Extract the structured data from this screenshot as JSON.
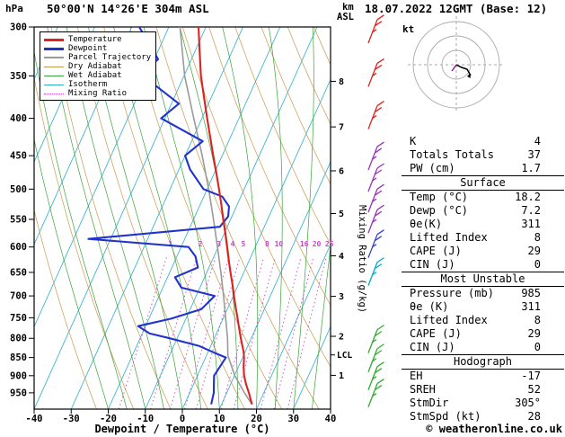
{
  "header": {
    "pressure_unit": "hPa",
    "station": "50°00'N 14°26'E 304m ASL",
    "datetime": "18.07.2022 12GMT (Base: 12)",
    "km_label": "km",
    "asl_label": "ASL",
    "kt_label": "kt"
  },
  "axes": {
    "xlabel": "Dewpoint / Temperature (°C)",
    "x_ticks": [
      -40,
      -30,
      -20,
      -10,
      0,
      10,
      20,
      30,
      40
    ],
    "pressure_ticks": [
      300,
      350,
      400,
      450,
      500,
      550,
      600,
      650,
      700,
      750,
      800,
      850,
      900,
      950
    ],
    "km_ticks": [
      8,
      7,
      6,
      5,
      4,
      3,
      2,
      1
    ],
    "mixing_ratio_label": "Mixing Ratio (g/kg)",
    "mixing_ratio_values": [
      1,
      2,
      3,
      4,
      5,
      8,
      10,
      16,
      20,
      25
    ],
    "lcl_label": "LCL"
  },
  "legend": [
    {
      "label": "Temperature",
      "color": "#dd2222",
      "width": 3,
      "dash": false
    },
    {
      "label": "Dewpoint",
      "color": "#2233cc",
      "width": 3,
      "dash": false
    },
    {
      "label": "Parcel Trajectory",
      "color": "#9a9a9a",
      "width": 2,
      "dash": false
    },
    {
      "label": "Dry Adiabat",
      "color": "#c79a4e",
      "width": 1,
      "dash": false
    },
    {
      "label": "Wet Adiabat",
      "color": "#3aa33a",
      "width": 1,
      "dash": false
    },
    {
      "label": "Isotherm",
      "color": "#29aecb",
      "width": 1,
      "dash": false
    },
    {
      "label": "Mixing Ratio",
      "color": "#cc44cc",
      "width": 1,
      "dash": true
    }
  ],
  "chart_data": {
    "type": "line",
    "subtype": "skew-t-log-p-sounding",
    "x_axis": {
      "label": "Dewpoint / Temperature (°C)",
      "range": [
        -40,
        40
      ],
      "ticks": [
        -40,
        -30,
        -20,
        -10,
        0,
        10,
        20,
        30,
        40
      ]
    },
    "y_axis": {
      "label": "hPa",
      "scale": "log",
      "range": [
        300,
        1000
      ],
      "ticks": [
        300,
        350,
        400,
        450,
        500,
        550,
        600,
        650,
        700,
        750,
        800,
        850,
        900,
        950
      ]
    },
    "secondary_y_axis": {
      "label": "km ASL",
      "ticks": [
        8,
        7,
        6,
        5,
        4,
        3,
        2,
        1
      ]
    },
    "mixing_ratio_lines_g_per_kg": [
      1,
      2,
      3,
      4,
      5,
      8,
      10,
      16,
      20,
      25
    ],
    "lcl_pressure_hpa": 843,
    "series": [
      {
        "name": "Temperature",
        "color": "#dd2222",
        "points": [
          [
            985,
            18.2
          ],
          [
            950,
            16.0
          ],
          [
            925,
            14.2
          ],
          [
            900,
            12.6
          ],
          [
            875,
            11.4
          ],
          [
            850,
            10.4
          ],
          [
            835,
            9.6
          ],
          [
            800,
            7.2
          ],
          [
            775,
            5.5
          ],
          [
            750,
            3.8
          ],
          [
            725,
            2.0
          ],
          [
            700,
            0.2
          ],
          [
            675,
            -1.6
          ],
          [
            650,
            -3.6
          ],
          [
            625,
            -5.6
          ],
          [
            600,
            -7.6
          ],
          [
            575,
            -9.7
          ],
          [
            550,
            -12.0
          ],
          [
            525,
            -14.3
          ],
          [
            500,
            -16.8
          ],
          [
            475,
            -19.5
          ],
          [
            450,
            -22.4
          ],
          [
            425,
            -25.4
          ],
          [
            400,
            -28.6
          ],
          [
            375,
            -31.9
          ],
          [
            350,
            -35.4
          ],
          [
            325,
            -38.6
          ],
          [
            300,
            -42.0
          ]
        ]
      },
      {
        "name": "Dewpoint",
        "color": "#2233cc",
        "points": [
          [
            985,
            7.2
          ],
          [
            950,
            6.5
          ],
          [
            925,
            5.5
          ],
          [
            900,
            4.5
          ],
          [
            875,
            5.0
          ],
          [
            850,
            5.5
          ],
          [
            838,
            2.0
          ],
          [
            820,
            -3.0
          ],
          [
            800,
            -12.0
          ],
          [
            788,
            -18.0
          ],
          [
            770,
            -22.0
          ],
          [
            752,
            -14.0
          ],
          [
            730,
            -7.0
          ],
          [
            700,
            -5.0
          ],
          [
            682,
            -15.0
          ],
          [
            660,
            -18.0
          ],
          [
            640,
            -13.0
          ],
          [
            618,
            -15.0
          ],
          [
            600,
            -18.0
          ],
          [
            585,
            -46.0
          ],
          [
            563,
            -12.0
          ],
          [
            545,
            -11.0
          ],
          [
            528,
            -12.0
          ],
          [
            512,
            -15.0
          ],
          [
            500,
            -21.0
          ],
          [
            470,
            -27.0
          ],
          [
            450,
            -30.0
          ],
          [
            430,
            -27.0
          ],
          [
            400,
            -41.0
          ],
          [
            382,
            -38.0
          ],
          [
            362,
            -46.0
          ],
          [
            350,
            -52.0
          ],
          [
            332,
            -49.0
          ],
          [
            300,
            -58.0
          ]
        ]
      },
      {
        "name": "Parcel Trajectory",
        "color": "#9a9a9a",
        "points": [
          [
            985,
            18.2
          ],
          [
            950,
            14.8
          ],
          [
            900,
            10.1
          ],
          [
            845,
            5.8
          ],
          [
            800,
            3.6
          ],
          [
            750,
            0.6
          ],
          [
            700,
            -2.6
          ],
          [
            650,
            -6.2
          ],
          [
            600,
            -10.2
          ],
          [
            550,
            -14.6
          ],
          [
            500,
            -19.6
          ],
          [
            450,
            -25.4
          ],
          [
            400,
            -32.2
          ],
          [
            350,
            -39.8
          ],
          [
            300,
            -47.0
          ]
        ]
      }
    ],
    "wind_barbs": [
      {
        "p": 305,
        "color": "#dd2222"
      },
      {
        "p": 350,
        "color": "#dd2222"
      },
      {
        "p": 400,
        "color": "#dd2222"
      },
      {
        "p": 455,
        "color": "#9933bb"
      },
      {
        "p": 487,
        "color": "#9933bb"
      },
      {
        "p": 520,
        "color": "#9933bb"
      },
      {
        "p": 555,
        "color": "#9933bb"
      },
      {
        "p": 600,
        "color": "#3344cc"
      },
      {
        "p": 655,
        "color": "#00aacc"
      },
      {
        "p": 810,
        "color": "#33aa33"
      },
      {
        "p": 860,
        "color": "#33aa33"
      },
      {
        "p": 910,
        "color": "#33aa33"
      },
      {
        "p": 960,
        "color": "#33aa33"
      }
    ]
  },
  "table": {
    "top_rows": [
      [
        "K",
        "4"
      ],
      [
        "Totals Totals",
        "37"
      ],
      [
        "PW (cm)",
        "1.7"
      ]
    ],
    "sections": [
      {
        "title": "Surface",
        "rows": [
          [
            "Temp (°C)",
            "18.2"
          ],
          [
            "Dewp (°C)",
            "7.2"
          ],
          [
            "θe(K)",
            "311"
          ],
          [
            "Lifted Index",
            "8"
          ],
          [
            "CAPE (J)",
            "29"
          ],
          [
            "CIN (J)",
            "0"
          ]
        ]
      },
      {
        "title": "Most Unstable",
        "rows": [
          [
            "Pressure (mb)",
            "985"
          ],
          [
            "θe (K)",
            "311"
          ],
          [
            "Lifted Index",
            "8"
          ],
          [
            "CAPE (J)",
            "29"
          ],
          [
            "CIN (J)",
            "0"
          ]
        ]
      },
      {
        "title": "Hodograph",
        "rows": [
          [
            "EH",
            "-17"
          ],
          [
            "SREH",
            "52"
          ],
          [
            "StmDir",
            "305°"
          ],
          [
            "StmSpd (kt)",
            "28"
          ]
        ]
      }
    ]
  },
  "footer": {
    "credit": "© weatheronline.co.uk"
  }
}
